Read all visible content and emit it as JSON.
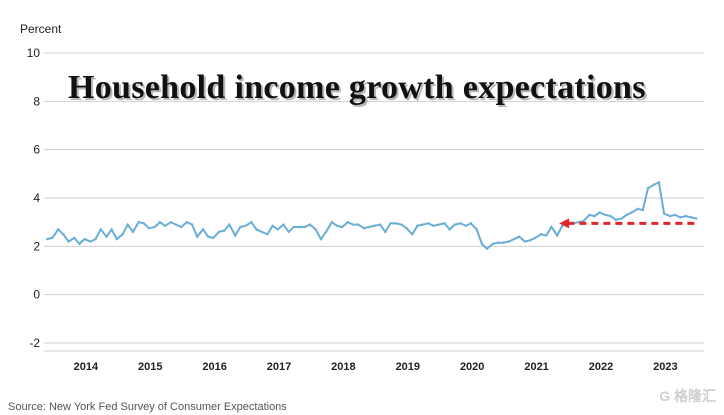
{
  "chart_data": {
    "type": "line",
    "title": "Household income growth expectations",
    "ylabel": "Percent",
    "ylim": [
      -2,
      10
    ],
    "yticks": [
      10,
      8,
      6,
      4,
      2,
      0,
      -2
    ],
    "xlabels": [
      "2014",
      "2015",
      "2016",
      "2017",
      "2018",
      "2019",
      "2020",
      "2021",
      "2022",
      "2023"
    ],
    "xlim": [
      2013.45,
      2023.7
    ],
    "grid": "horizontal",
    "line_color": "#6aaed6",
    "arrow_color": "#e0262d",
    "arrow": {
      "from": [
        2023.55,
        2.95
      ],
      "to": [
        2021.45,
        2.95
      ]
    },
    "series": [
      {
        "x": [
          2013.5,
          2013.58,
          2013.67,
          2013.75,
          2013.83,
          2013.92,
          2014.0,
          2014.08,
          2014.17,
          2014.25,
          2014.33,
          2014.42,
          2014.5,
          2014.58,
          2014.67,
          2014.75,
          2014.83,
          2014.92,
          2015.0,
          2015.08,
          2015.17,
          2015.25,
          2015.33,
          2015.42,
          2015.5,
          2015.58,
          2015.67,
          2015.75,
          2015.83,
          2015.92,
          2016.0,
          2016.08,
          2016.17,
          2016.25,
          2016.33,
          2016.42,
          2016.5,
          2016.58,
          2016.67,
          2016.75,
          2016.83,
          2016.92,
          2017.0,
          2017.08,
          2017.17,
          2017.25,
          2017.33,
          2017.42,
          2017.5,
          2017.58,
          2017.67,
          2017.75,
          2017.83,
          2017.92,
          2018.0,
          2018.08,
          2018.17,
          2018.25,
          2018.33,
          2018.42,
          2018.5,
          2018.58,
          2018.67,
          2018.75,
          2018.83,
          2018.92,
          2019.0,
          2019.08,
          2019.17,
          2019.25,
          2019.33,
          2019.42,
          2019.5,
          2019.58,
          2019.67,
          2019.75,
          2019.83,
          2019.92,
          2020.0,
          2020.08,
          2020.17,
          2020.25,
          2020.33,
          2020.42,
          2020.5,
          2020.58,
          2020.67,
          2020.75,
          2020.83,
          2020.92,
          2021.0,
          2021.08,
          2021.17,
          2021.25,
          2021.33,
          2021.42,
          2021.5,
          2021.58,
          2021.67,
          2021.75,
          2021.83,
          2021.92,
          2022.0,
          2022.08,
          2022.17,
          2022.25,
          2022.33,
          2022.42,
          2022.5,
          2022.58,
          2022.67,
          2022.75,
          2022.83,
          2022.92,
          2023.0,
          2023.08,
          2023.17,
          2023.25,
          2023.33,
          2023.42,
          2023.5,
          2023.58
        ],
        "y": [
          2.3,
          2.35,
          2.7,
          2.5,
          2.2,
          2.35,
          2.1,
          2.3,
          2.2,
          2.3,
          2.7,
          2.4,
          2.7,
          2.3,
          2.5,
          2.9,
          2.6,
          3.0,
          2.95,
          2.75,
          2.8,
          3.0,
          2.85,
          3.0,
          2.9,
          2.8,
          3.0,
          2.9,
          2.4,
          2.7,
          2.4,
          2.35,
          2.6,
          2.65,
          2.9,
          2.45,
          2.8,
          2.85,
          3.0,
          2.7,
          2.6,
          2.5,
          2.85,
          2.7,
          2.9,
          2.6,
          2.8,
          2.8,
          2.8,
          2.9,
          2.7,
          2.3,
          2.6,
          3.0,
          2.85,
          2.8,
          3.0,
          2.9,
          2.9,
          2.75,
          2.8,
          2.85,
          2.9,
          2.6,
          2.95,
          2.95,
          2.9,
          2.75,
          2.5,
          2.85,
          2.9,
          2.95,
          2.85,
          2.9,
          2.95,
          2.7,
          2.9,
          2.95,
          2.85,
          2.95,
          2.7,
          2.1,
          1.9,
          2.1,
          2.15,
          2.15,
          2.2,
          2.3,
          2.4,
          2.2,
          2.25,
          2.35,
          2.5,
          2.45,
          2.8,
          2.45,
          2.85,
          3.0,
          2.95,
          3.0,
          3.05,
          3.3,
          3.25,
          3.4,
          3.3,
          3.25,
          3.1,
          3.15,
          3.3,
          3.4,
          3.55,
          3.5,
          4.4,
          4.55,
          4.65,
          3.35,
          3.25,
          3.3,
          3.2,
          3.25,
          3.2,
          3.15
        ]
      }
    ]
  },
  "source": "Source: New York Fed Survey of Consumer Expectations",
  "watermark": "G 格隆汇"
}
